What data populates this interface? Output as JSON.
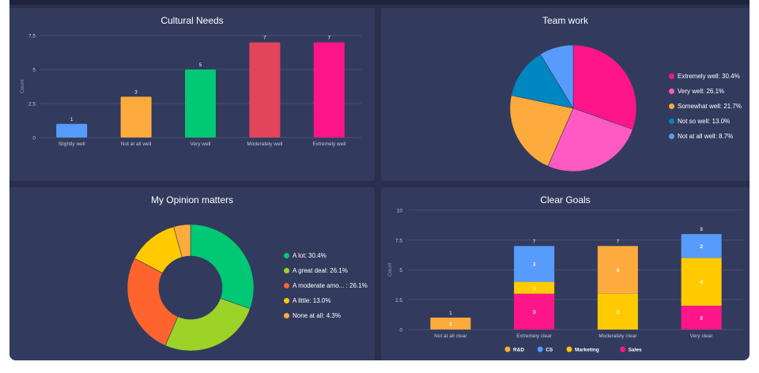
{
  "charts": [
    {
      "title": "Cultural Needs",
      "chart_data": {
        "type": "bar",
        "title": "Cultural Needs",
        "ylabel": "Count",
        "ylim": [
          0,
          7.5
        ],
        "yticks": [
          "0",
          "2.5",
          "5",
          "7.5"
        ],
        "categories": [
          "Slightly well",
          "Not at all well",
          "Very well",
          "Moderately well",
          "Extremely well"
        ],
        "values": [
          1,
          3,
          5,
          7,
          7
        ],
        "value_labels": [
          "1",
          "3",
          "5",
          "7",
          "7"
        ],
        "colors": [
          "#579bfc",
          "#fdab3d",
          "#00c875",
          "#e2445c",
          "#ff158a"
        ],
        "grid": true
      }
    },
    {
      "title": "Team work",
      "chart_data": {
        "type": "pie",
        "title": "Team work",
        "slices": [
          {
            "label": "Extremely well",
            "value": 30.4,
            "color": "#ff158a"
          },
          {
            "label": "Very well",
            "value": 26.1,
            "color": "#ff5ac4"
          },
          {
            "label": "Somewhat well",
            "value": 21.7,
            "color": "#fdab3d"
          },
          {
            "label": "Not so well",
            "value": 13.0,
            "color": "#0086c0"
          },
          {
            "label": "Not at all well",
            "value": 8.7,
            "color": "#579bfc"
          }
        ],
        "legend": [
          "Extremely well: 30.4%",
          "Very well: 26.1%",
          "Somewhat well: 21.7%",
          "Not so well: 13.0%",
          "Not at all well: 8.7%"
        ],
        "legend_position": "right"
      }
    },
    {
      "title": "My Opinion matters",
      "chart_data": {
        "type": "pie",
        "donut": true,
        "title": "My Opinion matters",
        "slices": [
          {
            "label": "A lot",
            "value": 30.4,
            "color": "#00c875"
          },
          {
            "label": "A great deal",
            "value": 26.1,
            "color": "#9cd326"
          },
          {
            "label": "A moderate amount",
            "value": 26.1,
            "color": "#ff642e"
          },
          {
            "label": "A little",
            "value": 13.0,
            "color": "#ffcb00"
          },
          {
            "label": "None at all",
            "value": 4.3,
            "color": "#fdab3d"
          }
        ],
        "legend": [
          "A lot: 30.4%",
          "A great deal: 26.1%",
          "A moderate amo... : 26.1%",
          "A little: 13.0%",
          "None at all: 4.3%"
        ],
        "legend_position": "right"
      }
    },
    {
      "title": "Clear Goals",
      "chart_data": {
        "type": "bar",
        "stacked": true,
        "title": "Clear Goals",
        "ylabel": "Count",
        "ylim": [
          0,
          10
        ],
        "yticks": [
          "0",
          "2.5",
          "5",
          "7.5",
          "10"
        ],
        "categories": [
          "Not at all clear",
          "Extremely clear",
          "Moderately clear",
          "Very clear"
        ],
        "series": [
          {
            "name": "Sales",
            "color": "#ff158a",
            "values": [
              0,
              3,
              0,
              2
            ]
          },
          {
            "name": "Marketing",
            "color": "#ffcb00",
            "values": [
              0,
              1,
              3,
              4
            ]
          },
          {
            "name": "CS",
            "color": "#579bfc",
            "values": [
              0,
              3,
              0,
              2
            ]
          },
          {
            "name": "R&D",
            "color": "#fdab3d",
            "values": [
              1,
              0,
              4,
              0
            ]
          }
        ],
        "totals": [
          "1",
          "7",
          "7",
          "8"
        ],
        "legend_order": [
          "R&D",
          "CS",
          "Marketing",
          "Sales"
        ],
        "legend_position": "bottom",
        "grid": true
      }
    }
  ]
}
